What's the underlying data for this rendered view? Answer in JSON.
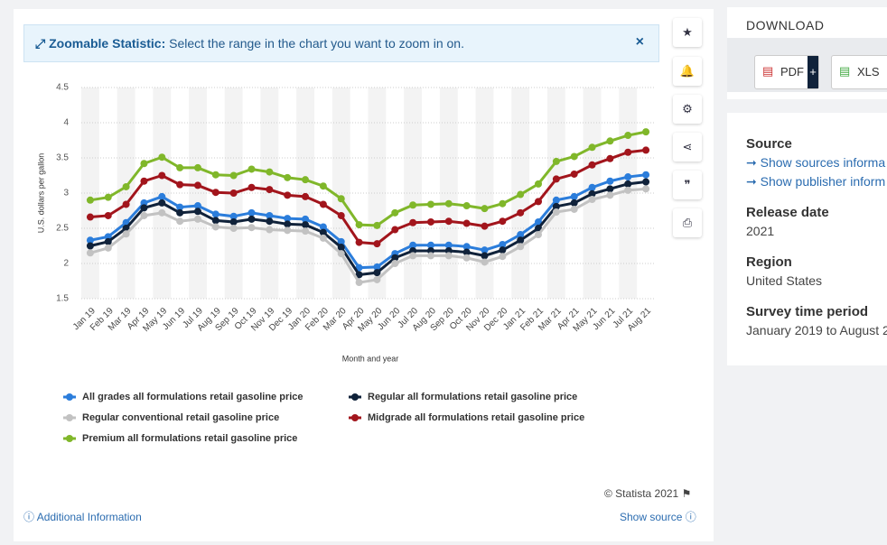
{
  "banner": {
    "title": "Zoomable Statistic:",
    "text": "Select the range in the chart you want to zoom in on."
  },
  "chart_data": {
    "type": "line",
    "x_label": "Month and year",
    "y_label": "U.S. dollars per gallon",
    "categories": [
      "Jan 19",
      "Feb 19",
      "Mar 19",
      "Apr 19",
      "May 19",
      "Jun 19",
      "Jul 19",
      "Aug 19",
      "Sep 19",
      "Oct 19",
      "Nov 19",
      "Dec 19",
      "Jan 20",
      "Feb 20",
      "Mar 20",
      "Apr 20",
      "May 20",
      "Jun 20",
      "Jul 20",
      "Aug 20",
      "Sep 20",
      "Oct 20",
      "Nov 20",
      "Dec 20",
      "Jan 21",
      "Feb 21",
      "Mar 21",
      "Apr 21",
      "May 21",
      "Jun 21",
      "Jul 21",
      "Aug 21"
    ],
    "ylim": [
      1.5,
      4.5
    ],
    "yticks": [
      1.5,
      2,
      2.5,
      3,
      3.5,
      4,
      4.5
    ],
    "grid": true,
    "series": [
      {
        "name": "All grades all formulations retail gasoline price",
        "color": "#2b7ddb",
        "values": [
          2.33,
          2.38,
          2.58,
          2.86,
          2.95,
          2.8,
          2.82,
          2.7,
          2.67,
          2.72,
          2.68,
          2.64,
          2.63,
          2.52,
          2.31,
          1.94,
          1.95,
          2.14,
          2.26,
          2.26,
          2.26,
          2.24,
          2.19,
          2.27,
          2.41,
          2.59,
          2.9,
          2.95,
          3.08,
          3.17,
          3.23,
          3.26
        ]
      },
      {
        "name": "Regular all formulations retail gasoline price",
        "color": "#10223a",
        "values": [
          2.25,
          2.31,
          2.5,
          2.79,
          2.86,
          2.72,
          2.74,
          2.61,
          2.59,
          2.63,
          2.6,
          2.56,
          2.55,
          2.44,
          2.23,
          1.84,
          1.87,
          2.08,
          2.18,
          2.18,
          2.18,
          2.16,
          2.11,
          2.19,
          2.33,
          2.5,
          2.81,
          2.86,
          2.99,
          3.06,
          3.13,
          3.16
        ]
      },
      {
        "name": "Regular conventional retail gasoline price",
        "color": "#c2c2c2",
        "values": [
          2.15,
          2.22,
          2.42,
          2.68,
          2.72,
          2.6,
          2.63,
          2.52,
          2.5,
          2.51,
          2.48,
          2.47,
          2.46,
          2.36,
          2.14,
          1.73,
          1.77,
          2.0,
          2.11,
          2.11,
          2.11,
          2.08,
          2.02,
          2.1,
          2.24,
          2.41,
          2.73,
          2.77,
          2.91,
          2.97,
          3.04,
          3.06
        ]
      },
      {
        "name": "Midgrade all formulations retail gasoline price",
        "color": "#a2151c",
        "values": [
          2.66,
          2.68,
          2.84,
          3.17,
          3.25,
          3.12,
          3.11,
          3.01,
          3.0,
          3.08,
          3.05,
          2.97,
          2.95,
          2.84,
          2.68,
          2.3,
          2.28,
          2.48,
          2.58,
          2.59,
          2.6,
          2.57,
          2.53,
          2.6,
          2.72,
          2.88,
          3.2,
          3.27,
          3.4,
          3.49,
          3.58,
          3.61
        ]
      },
      {
        "name": "Premium all formulations retail gasoline price",
        "color": "#80b72a",
        "values": [
          2.9,
          2.94,
          3.09,
          3.42,
          3.51,
          3.36,
          3.36,
          3.26,
          3.25,
          3.34,
          3.3,
          3.22,
          3.19,
          3.1,
          2.92,
          2.55,
          2.54,
          2.72,
          2.83,
          2.84,
          2.85,
          2.82,
          2.78,
          2.85,
          2.98,
          3.13,
          3.45,
          3.52,
          3.65,
          3.74,
          3.82,
          3.87
        ]
      }
    ]
  },
  "footer": {
    "copyright": "© Statista 2021",
    "additional": "Additional Information",
    "show_source": "Show source"
  },
  "sidebar": {
    "download": "DOWNLOAD",
    "pdf": "PDF",
    "xls": "XLS",
    "source_title": "Source",
    "source_links": [
      "➞ Show sources informa",
      "➞ Show publisher inform"
    ],
    "release_title": "Release date",
    "release": "2021",
    "region_title": "Region",
    "region": "United States",
    "period_title": "Survey time period",
    "period": "January 2019 to August 2"
  }
}
